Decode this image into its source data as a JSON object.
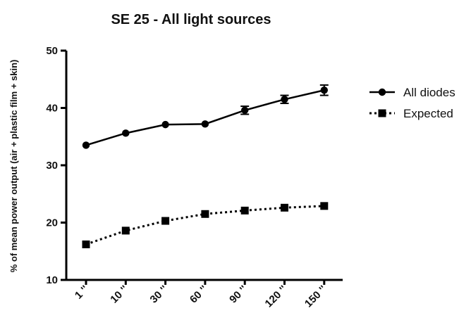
{
  "chart_data": {
    "type": "line",
    "title": "SE 25 - All light sources",
    "xlabel": "",
    "ylabel": "% of mean power output (air + plastic film + skin)",
    "categories": [
      "1 ''",
      "10 ''",
      "30 ''",
      "60 ''",
      "90 ''",
      "120 ''",
      "150 ''"
    ],
    "ylim": [
      10,
      50
    ],
    "yticks": [
      "10",
      "20",
      "30",
      "40",
      "50"
    ],
    "grid": false,
    "legend": "right",
    "series": [
      {
        "name": "All diodes",
        "values": [
          33.5,
          35.6,
          37.1,
          37.2,
          39.6,
          41.5,
          43.1
        ],
        "errors": [
          0,
          0,
          0,
          0,
          0.7,
          0.7,
          0.9
        ],
        "marker": "circle",
        "line": "solid",
        "color": "#000000"
      },
      {
        "name": "Expected",
        "values": [
          16.2,
          18.6,
          20.3,
          21.5,
          22.1,
          22.6,
          22.9
        ],
        "errors": [
          0,
          0,
          0,
          0,
          0,
          0,
          0
        ],
        "marker": "square",
        "line": "dotted",
        "color": "#000000"
      }
    ]
  }
}
